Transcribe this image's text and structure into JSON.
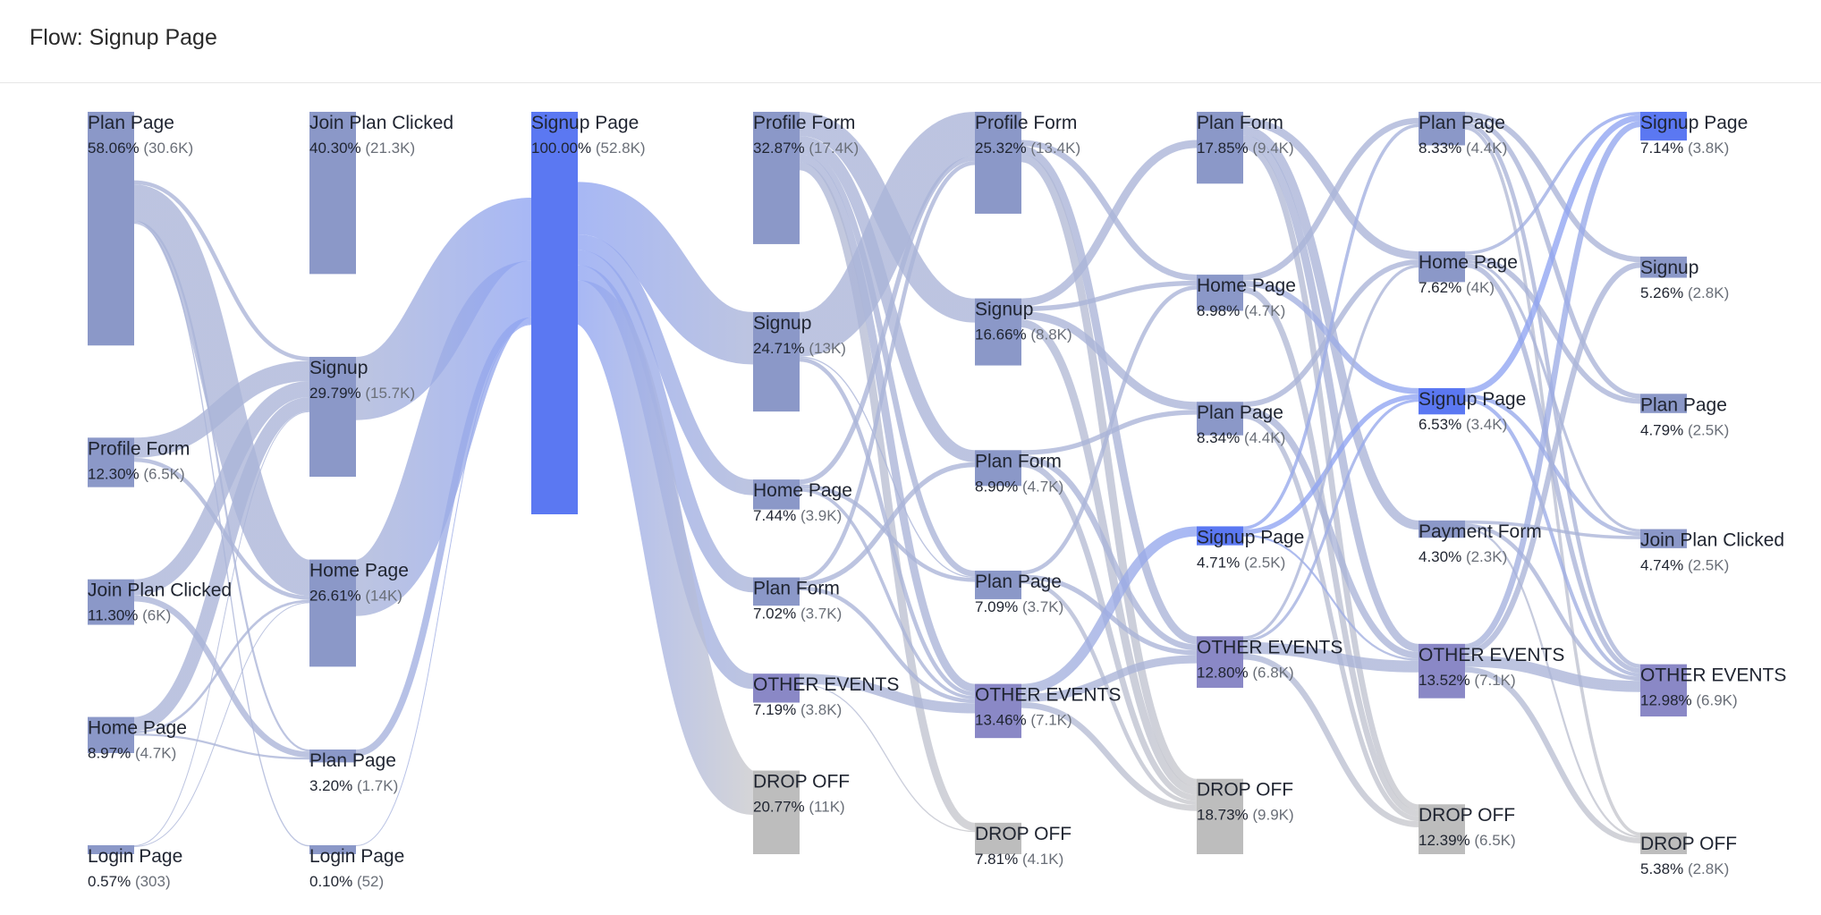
{
  "page": {
    "title": "Flow: Signup Page"
  },
  "colors": {
    "default_node": "#8b98c8",
    "focus_node": "#5b78f2",
    "other_node": "#8a88c6",
    "dropoff_node": "#bdbdbd",
    "default_link": "#aab4d8",
    "focus_link": "#8fa4f2",
    "dropoff_link": "#c9c9cc"
  },
  "flow": {
    "columns": [
      [
        {
          "id": "c0-plan-page",
          "name": "Plan Page",
          "pct": "58.06%",
          "count": "(30.6K)",
          "kind": "default"
        },
        {
          "id": "c0-profile-form",
          "name": "Profile Form",
          "pct": "12.30%",
          "count": "(6.5K)",
          "kind": "default"
        },
        {
          "id": "c0-join-plan-clicked",
          "name": "Join Plan Clicked",
          "pct": "11.30%",
          "count": "(6K)",
          "kind": "default"
        },
        {
          "id": "c0-home-page",
          "name": "Home Page",
          "pct": "8.97%",
          "count": "(4.7K)",
          "kind": "default"
        },
        {
          "id": "c0-login-page",
          "name": "Login Page",
          "pct": "0.57%",
          "count": "(303)",
          "kind": "default"
        }
      ],
      [
        {
          "id": "c1-join-plan-clicked",
          "name": "Join Plan Clicked",
          "pct": "40.30%",
          "count": "(21.3K)",
          "kind": "default"
        },
        {
          "id": "c1-signup",
          "name": "Signup",
          "pct": "29.79%",
          "count": "(15.7K)",
          "kind": "default"
        },
        {
          "id": "c1-home-page",
          "name": "Home Page",
          "pct": "26.61%",
          "count": "(14K)",
          "kind": "default"
        },
        {
          "id": "c1-plan-page",
          "name": "Plan Page",
          "pct": "3.20%",
          "count": "(1.7K)",
          "kind": "default"
        },
        {
          "id": "c1-login-page",
          "name": "Login Page",
          "pct": "0.10%",
          "count": "(52)",
          "kind": "default"
        }
      ],
      [
        {
          "id": "c2-signup-page",
          "name": "Signup Page",
          "pct": "100.00%",
          "count": "(52.8K)",
          "kind": "focus"
        }
      ],
      [
        {
          "id": "c3-profile-form",
          "name": "Profile Form",
          "pct": "32.87%",
          "count": "(17.4K)",
          "kind": "default"
        },
        {
          "id": "c3-signup",
          "name": "Signup",
          "pct": "24.71%",
          "count": "(13K)",
          "kind": "default"
        },
        {
          "id": "c3-home-page",
          "name": "Home Page",
          "pct": "7.44%",
          "count": "(3.9K)",
          "kind": "default"
        },
        {
          "id": "c3-plan-form",
          "name": "Plan Form",
          "pct": "7.02%",
          "count": "(3.7K)",
          "kind": "default"
        },
        {
          "id": "c3-other-events",
          "name": "OTHER EVENTS",
          "pct": "7.19%",
          "count": "(3.8K)",
          "kind": "other"
        },
        {
          "id": "c3-drop-off",
          "name": "DROP OFF",
          "pct": "20.77%",
          "count": "(11K)",
          "kind": "dropoff"
        }
      ],
      [
        {
          "id": "c4-profile-form",
          "name": "Profile Form",
          "pct": "25.32%",
          "count": "(13.4K)",
          "kind": "default"
        },
        {
          "id": "c4-signup",
          "name": "Signup",
          "pct": "16.66%",
          "count": "(8.8K)",
          "kind": "default"
        },
        {
          "id": "c4-plan-form",
          "name": "Plan Form",
          "pct": "8.90%",
          "count": "(4.7K)",
          "kind": "default"
        },
        {
          "id": "c4-plan-page",
          "name": "Plan Page",
          "pct": "7.09%",
          "count": "(3.7K)",
          "kind": "default"
        },
        {
          "id": "c4-other-events",
          "name": "OTHER EVENTS",
          "pct": "13.46%",
          "count": "(7.1K)",
          "kind": "other"
        },
        {
          "id": "c4-drop-off",
          "name": "DROP OFF",
          "pct": "7.81%",
          "count": "(4.1K)",
          "kind": "dropoff"
        }
      ],
      [
        {
          "id": "c5-plan-form",
          "name": "Plan Form",
          "pct": "17.85%",
          "count": "(9.4K)",
          "kind": "default"
        },
        {
          "id": "c5-home-page",
          "name": "Home Page",
          "pct": "8.98%",
          "count": "(4.7K)",
          "kind": "default"
        },
        {
          "id": "c5-plan-page",
          "name": "Plan Page",
          "pct": "8.34%",
          "count": "(4.4K)",
          "kind": "default"
        },
        {
          "id": "c5-signup-page",
          "name": "Signup Page",
          "pct": "4.71%",
          "count": "(2.5K)",
          "kind": "focus"
        },
        {
          "id": "c5-other-events",
          "name": "OTHER EVENTS",
          "pct": "12.80%",
          "count": "(6.8K)",
          "kind": "other"
        },
        {
          "id": "c5-drop-off",
          "name": "DROP OFF",
          "pct": "18.73%",
          "count": "(9.9K)",
          "kind": "dropoff"
        }
      ],
      [
        {
          "id": "c6-plan-page",
          "name": "Plan Page",
          "pct": "8.33%",
          "count": "(4.4K)",
          "kind": "default"
        },
        {
          "id": "c6-home-page",
          "name": "Home Page",
          "pct": "7.62%",
          "count": "(4K)",
          "kind": "default"
        },
        {
          "id": "c6-signup-page",
          "name": "Signup Page",
          "pct": "6.53%",
          "count": "(3.4K)",
          "kind": "focus"
        },
        {
          "id": "c6-payment-form",
          "name": "Payment Form",
          "pct": "4.30%",
          "count": "(2.3K)",
          "kind": "default"
        },
        {
          "id": "c6-other-events",
          "name": "OTHER EVENTS",
          "pct": "13.52%",
          "count": "(7.1K)",
          "kind": "other"
        },
        {
          "id": "c6-drop-off",
          "name": "DROP OFF",
          "pct": "12.39%",
          "count": "(6.5K)",
          "kind": "dropoff"
        }
      ],
      [
        {
          "id": "c7-signup-page",
          "name": "Signup Page",
          "pct": "7.14%",
          "count": "(3.8K)",
          "kind": "focus"
        },
        {
          "id": "c7-signup",
          "name": "Signup",
          "pct": "5.26%",
          "count": "(2.8K)",
          "kind": "default"
        },
        {
          "id": "c7-plan-page",
          "name": "Plan Page",
          "pct": "4.79%",
          "count": "(2.5K)",
          "kind": "default"
        },
        {
          "id": "c7-join-plan-clicked",
          "name": "Join Plan Clicked",
          "pct": "4.74%",
          "count": "(2.5K)",
          "kind": "default"
        },
        {
          "id": "c7-other-events",
          "name": "OTHER EVENTS",
          "pct": "12.98%",
          "count": "(6.9K)",
          "kind": "other"
        },
        {
          "id": "c7-drop-off",
          "name": "DROP OFF",
          "pct": "5.38%",
          "count": "(2.8K)",
          "kind": "dropoff"
        }
      ]
    ],
    "links": [
      [
        "c0-plan-page",
        "c1-join-plan-clicked",
        17
      ],
      [
        "c0-plan-page",
        "c1-home-page",
        9
      ],
      [
        "c0-plan-page",
        "c1-signup",
        1
      ],
      [
        "c0-plan-page",
        "c1-plan-page",
        0.5
      ],
      [
        "c0-plan-page",
        "c1-login-page",
        0.3
      ],
      [
        "c0-profile-form",
        "c1-signup",
        5
      ],
      [
        "c0-profile-form",
        "c1-home-page",
        1
      ],
      [
        "c0-join-plan-clicked",
        "c1-signup",
        4
      ],
      [
        "c0-join-plan-clicked",
        "c1-plan-page",
        1.5
      ],
      [
        "c0-home-page",
        "c1-signup",
        3.5
      ],
      [
        "c0-home-page",
        "c1-home-page",
        0.6
      ],
      [
        "c0-home-page",
        "c1-plan-page",
        0.5
      ],
      [
        "c0-login-page",
        "c1-signup",
        0.15
      ],
      [
        "c0-login-page",
        "c1-home-page",
        0.1
      ],
      [
        "c1-join-plan-clicked",
        "c2-signup-page",
        21.3
      ],
      [
        "c1-signup",
        "c2-signup-page",
        15.7
      ],
      [
        "c1-home-page",
        "c2-signup-page",
        14
      ],
      [
        "c1-plan-page",
        "c2-signup-page",
        1.7
      ],
      [
        "c1-login-page",
        "c2-signup-page",
        0.1
      ],
      [
        "c2-signup-page",
        "c3-profile-form",
        17.4
      ],
      [
        "c2-signup-page",
        "c3-signup",
        13
      ],
      [
        "c2-signup-page",
        "c3-home-page",
        3.9
      ],
      [
        "c2-signup-page",
        "c3-plan-form",
        3.7
      ],
      [
        "c2-signup-page",
        "c3-other-events",
        3.8
      ],
      [
        "c2-signup-page",
        "c3-drop-off",
        11
      ],
      [
        "c3-profile-form",
        "c4-signup",
        6
      ],
      [
        "c3-profile-form",
        "c4-plan-form",
        3
      ],
      [
        "c3-profile-form",
        "c4-plan-page",
        1.5
      ],
      [
        "c3-profile-form",
        "c4-other-events",
        2
      ],
      [
        "c3-profile-form",
        "c4-drop-off",
        2
      ],
      [
        "c3-signup",
        "c4-profile-form",
        11
      ],
      [
        "c3-signup",
        "c4-other-events",
        1
      ],
      [
        "c3-signup",
        "c4-plan-page",
        0.3
      ],
      [
        "c3-home-page",
        "c4-profile-form",
        1.2
      ],
      [
        "c3-home-page",
        "c4-plan-page",
        1
      ],
      [
        "c3-home-page",
        "c4-other-events",
        0.8
      ],
      [
        "c3-plan-form",
        "c4-profile-form",
        1
      ],
      [
        "c3-plan-form",
        "c4-plan-form",
        1.2
      ],
      [
        "c3-plan-form",
        "c4-other-events",
        1
      ],
      [
        "c3-other-events",
        "c4-other-events",
        2.5
      ],
      [
        "c3-other-events",
        "c4-drop-off",
        0.3
      ],
      [
        "c4-profile-form",
        "c5-plan-form",
        7
      ],
      [
        "c4-profile-form",
        "c5-home-page",
        1.5
      ],
      [
        "c4-profile-form",
        "c5-other-events",
        2
      ],
      [
        "c4-profile-form",
        "c5-drop-off",
        2
      ],
      [
        "c4-signup",
        "c5-plan-form",
        2
      ],
      [
        "c4-signup",
        "c5-home-page",
        1.2
      ],
      [
        "c4-signup",
        "c5-plan-page",
        2
      ],
      [
        "c4-signup",
        "c5-drop-off",
        2
      ],
      [
        "c4-plan-form",
        "c5-plan-page",
        1.2
      ],
      [
        "c4-plan-form",
        "c5-other-events",
        1.5
      ],
      [
        "c4-plan-form",
        "c5-drop-off",
        1.5
      ],
      [
        "c4-plan-page",
        "c5-home-page",
        1
      ],
      [
        "c4-plan-page",
        "c5-other-events",
        1.2
      ],
      [
        "c4-plan-page",
        "c5-drop-off",
        1
      ],
      [
        "c4-other-events",
        "c5-signup-page",
        2.5
      ],
      [
        "c4-other-events",
        "c5-other-events",
        2
      ],
      [
        "c4-other-events",
        "c5-drop-off",
        1.5
      ],
      [
        "c5-plan-form",
        "c6-plan-page",
        1.5
      ],
      [
        "c5-plan-form",
        "c6-home-page",
        2
      ],
      [
        "c5-plan-form",
        "c6-payment-form",
        2.3
      ],
      [
        "c5-plan-form",
        "c6-other-events",
        2
      ],
      [
        "c5-plan-form",
        "c6-drop-off",
        1.5
      ],
      [
        "c5-home-page",
        "c6-plan-page",
        1.5
      ],
      [
        "c5-home-page",
        "c6-signup-page",
        1.5
      ],
      [
        "c5-home-page",
        "c6-drop-off",
        1.5
      ],
      [
        "c5-plan-page",
        "c6-home-page",
        1.3
      ],
      [
        "c5-plan-page",
        "c6-other-events",
        1.7
      ],
      [
        "c5-plan-page",
        "c6-drop-off",
        1.2
      ],
      [
        "c5-signup-page",
        "c6-plan-page",
        0.8
      ],
      [
        "c5-signup-page",
        "c6-signup-page",
        1.2
      ],
      [
        "c5-signup-page",
        "c6-other-events",
        0.5
      ],
      [
        "c5-other-events",
        "c6-home-page",
        0.7
      ],
      [
        "c5-other-events",
        "c6-signup-page",
        0.7
      ],
      [
        "c5-other-events",
        "c6-other-events",
        2.9
      ],
      [
        "c5-other-events",
        "c6-drop-off",
        1.5
      ],
      [
        "c6-plan-page",
        "c7-signup",
        1.4
      ],
      [
        "c6-plan-page",
        "c7-plan-page",
        1.2
      ],
      [
        "c6-plan-page",
        "c7-other-events",
        1
      ],
      [
        "c6-plan-page",
        "c7-drop-off",
        0.8
      ],
      [
        "c6-home-page",
        "c7-signup-page",
        0.8
      ],
      [
        "c6-home-page",
        "c7-plan-page",
        1.3
      ],
      [
        "c6-home-page",
        "c7-other-events",
        1.2
      ],
      [
        "c6-home-page",
        "c7-join-plan-clicked",
        0.7
      ],
      [
        "c6-signup-page",
        "c7-signup-page",
        1.5
      ],
      [
        "c6-signup-page",
        "c7-join-plan-clicked",
        1
      ],
      [
        "c6-signup-page",
        "c7-other-events",
        0.9
      ],
      [
        "c6-payment-form",
        "c7-join-plan-clicked",
        0.8
      ],
      [
        "c6-payment-form",
        "c7-other-events",
        1
      ],
      [
        "c6-payment-form",
        "c7-drop-off",
        0.5
      ],
      [
        "c6-other-events",
        "c7-signup-page",
        1.5
      ],
      [
        "c6-other-events",
        "c7-signup",
        1.4
      ],
      [
        "c6-other-events",
        "c7-other-events",
        2.8
      ],
      [
        "c6-other-events",
        "c7-drop-off",
        1.4
      ]
    ]
  }
}
